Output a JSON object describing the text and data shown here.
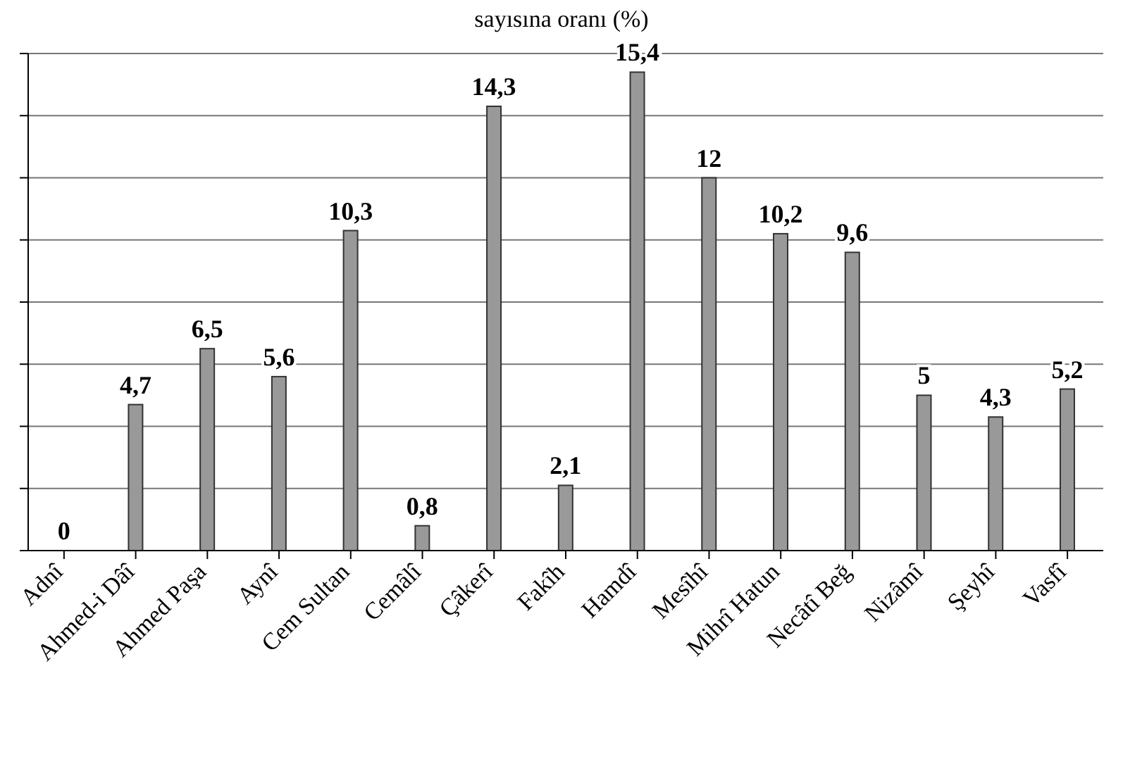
{
  "chart_data": {
    "type": "bar",
    "title": "sayısına oranı (%)",
    "categories": [
      "Adnî",
      "Ahmed-i Dâî",
      "Ahmed Paşa",
      "Aynî",
      "Cem Sultan",
      "Cemâlî",
      "Çâkerî",
      "Fakîh",
      "Hamdî",
      "Mesîhî",
      "Mihrî Hatun",
      "Necâtî Beğ",
      "Nizâmî",
      "Şeyhî",
      "Vasfî"
    ],
    "values": [
      0,
      4.7,
      6.5,
      5.6,
      10.3,
      0.8,
      14.3,
      2.1,
      15.4,
      12,
      10.2,
      9.6,
      5,
      4.3,
      5.2
    ],
    "value_labels": [
      "0",
      "4,7",
      "6,5",
      "5,6",
      "10,3",
      "0,8",
      "14,3",
      "2,1",
      "15,4",
      "12",
      "10,2",
      "9,6",
      "5",
      "4,3",
      "5,2"
    ],
    "color": "#999999",
    "grid": "y",
    "tick_labels": "x"
  }
}
